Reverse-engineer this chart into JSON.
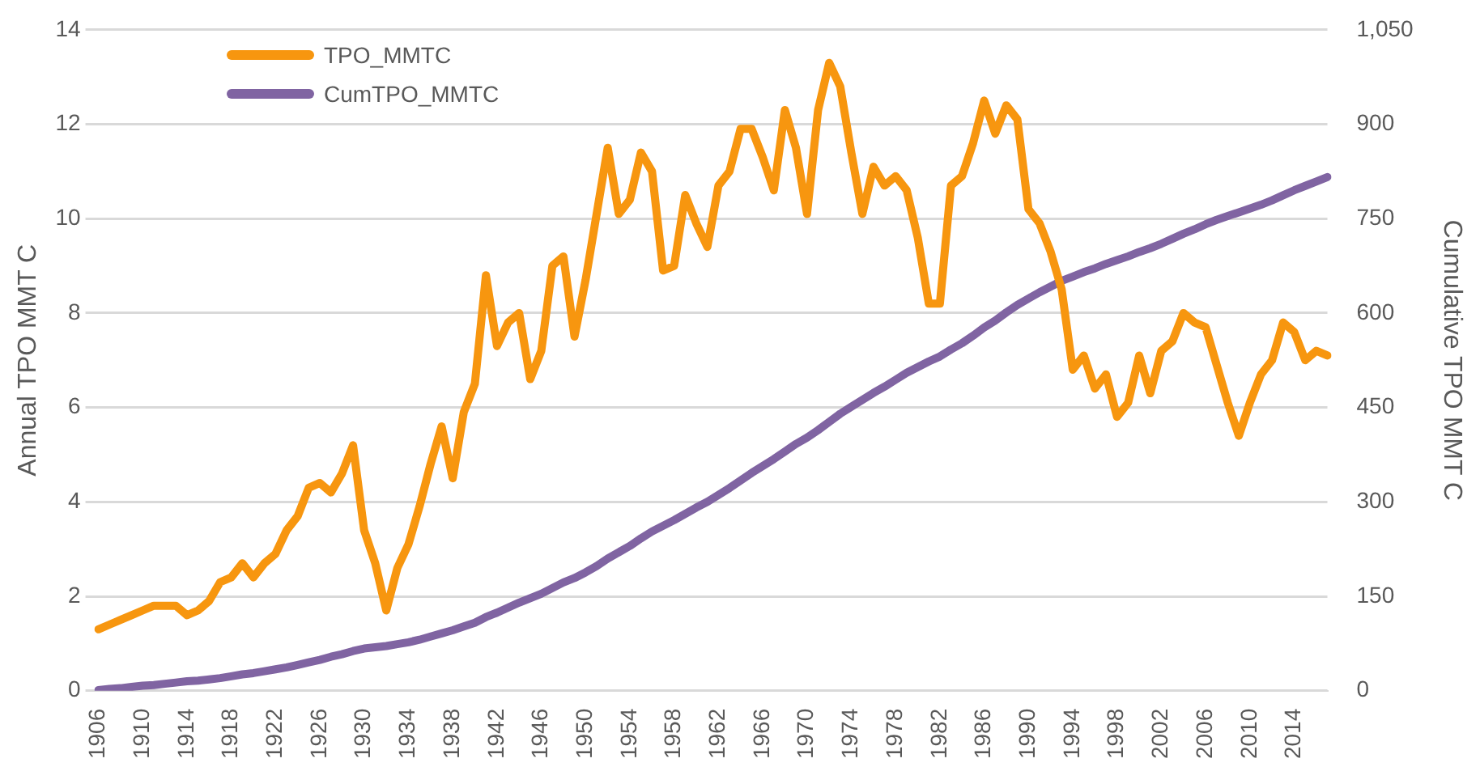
{
  "chart_data": {
    "type": "line",
    "ylabel": "Annual TPO MMT C",
    "y2label": "Cumulative TPO MMT C",
    "categories": [
      "1906",
      null,
      null,
      null,
      "1910",
      null,
      null,
      null,
      "1914",
      null,
      null,
      null,
      "1918",
      null,
      null,
      null,
      "1922",
      null,
      null,
      null,
      "1926",
      null,
      null,
      null,
      "1930",
      null,
      null,
      null,
      "1934",
      null,
      null,
      null,
      "1938",
      null,
      null,
      null,
      "1942",
      null,
      null,
      null,
      "1946",
      null,
      null,
      null,
      "1950",
      null,
      null,
      null,
      "1954",
      null,
      null,
      null,
      "1958",
      null,
      null,
      null,
      "1962",
      null,
      null,
      null,
      "1966",
      null,
      null,
      null,
      "1970",
      null,
      null,
      null,
      "1974",
      null,
      null,
      null,
      "1978",
      null,
      null,
      null,
      "1982",
      null,
      null,
      null,
      "1986",
      null,
      null,
      null,
      "1990",
      null,
      null,
      null,
      "1994",
      null,
      null,
      null,
      "1998",
      null,
      null,
      null,
      "2002",
      null,
      null,
      null,
      "2006",
      null,
      null,
      null,
      "2010",
      null,
      null,
      null,
      "2014",
      null,
      null,
      null
    ],
    "series": [
      {
        "name": "TPO_MMTC",
        "color": "#f7960f",
        "values": [
          1.3,
          1.4,
          1.5,
          1.6,
          1.7,
          1.8,
          1.8,
          1.8,
          1.6,
          1.7,
          1.9,
          2.3,
          2.4,
          2.7,
          2.4,
          2.7,
          2.9,
          3.4,
          3.7,
          4.3,
          4.4,
          4.2,
          4.6,
          5.2,
          3.4,
          2.7,
          1.7,
          2.6,
          3.1,
          3.9,
          4.8,
          5.6,
          4.5,
          5.9,
          6.5,
          8.8,
          7.3,
          7.8,
          8.0,
          6.6,
          7.2,
          9.0,
          9.2,
          7.5,
          8.7,
          10.1,
          11.5,
          10.1,
          10.4,
          11.4,
          11.0,
          8.9,
          9.0,
          10.5,
          9.9,
          9.4,
          10.7,
          11.0,
          11.9,
          11.9,
          11.3,
          10.6,
          12.3,
          11.5,
          10.1,
          12.3,
          13.3,
          12.8,
          11.4,
          10.1,
          11.1,
          10.7,
          10.9,
          10.6,
          9.6,
          8.2,
          8.2,
          10.7,
          10.9,
          11.6,
          12.5,
          11.8,
          12.4,
          12.1,
          10.2,
          9.9,
          9.3,
          8.5,
          6.8,
          7.1,
          6.4,
          6.7,
          5.8,
          6.1,
          7.1,
          6.3,
          7.2,
          7.4,
          8.0,
          7.8,
          7.7,
          6.9,
          6.1,
          5.4,
          6.1,
          6.7,
          7.0,
          7.8,
          7.6,
          7.0,
          7.2,
          7.1
        ]
      },
      {
        "name": "CumTPO_MMTC",
        "color": "#8064a2",
        "axis": "y2",
        "values": [
          1,
          3,
          4,
          6,
          8,
          9,
          11,
          13,
          15,
          16,
          18,
          20,
          23,
          26,
          28,
          31,
          34,
          37,
          41,
          45,
          49,
          54,
          58,
          63,
          67,
          69,
          71,
          74,
          77,
          81,
          86,
          91,
          96,
          102,
          108,
          117,
          124,
          132,
          140,
          147,
          154,
          163,
          172,
          179,
          188,
          198,
          210,
          220,
          230,
          242,
          253,
          262,
          271,
          281,
          291,
          300,
          311,
          322,
          334,
          346,
          357,
          368,
          380,
          392,
          402,
          414,
          427,
          440,
          451,
          462,
          473,
          483,
          494,
          505,
          514,
          523,
          531,
          542,
          552,
          564,
          577,
          588,
          601,
          613,
          623,
          633,
          642,
          651,
          658,
          665,
          671,
          678,
          684,
          690,
          697,
          703,
          710,
          718,
          726,
          733,
          741,
          748,
          754,
          760,
          766,
          772,
          779,
          787,
          795,
          802,
          809,
          816
        ]
      }
    ],
    "ylim": [
      0,
      14
    ],
    "yticks": [
      0,
      2,
      4,
      6,
      8,
      10,
      12,
      14
    ],
    "y2lim": [
      0,
      1050
    ],
    "y2ticks": [
      0,
      150,
      300,
      450,
      600,
      750,
      900,
      {
        "value": 1050,
        "label": "1,050"
      }
    ],
    "grid": "y",
    "legend": "top left",
    "marker": "none",
    "line_style": "solid"
  }
}
